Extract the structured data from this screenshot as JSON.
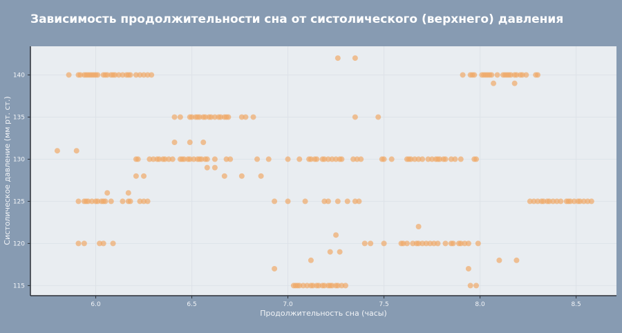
{
  "chart_data": {
    "type": "scatter",
    "title": "Зависимость продолжительности сна от систолического (верхнего) давления",
    "xlabel": "Продолжительность сна (часы)",
    "ylabel": "Систолическое давление (мм рт. ст.)",
    "xlim": [
      5.66,
      8.71
    ],
    "ylim": [
      113.8,
      143.4
    ],
    "xticks": [
      "6.0",
      "6.5",
      "7.0",
      "7.5",
      "8.0",
      "8.5"
    ],
    "yticks": [
      "115",
      "120",
      "125",
      "130",
      "135",
      "140"
    ],
    "grid": true,
    "colors": {
      "point": "#f0a96a",
      "background": "#879bb2",
      "plot_background": "#e9edf1",
      "grid": "#dde2e8"
    },
    "groups": [
      {
        "y": 142,
        "x": [
          7.26,
          7.35
        ]
      },
      {
        "y": 140,
        "x": [
          5.86,
          5.91,
          5.92,
          5.94,
          5.95,
          5.96,
          5.97,
          5.98,
          5.99,
          6.0,
          6.01,
          6.04,
          6.05,
          6.06,
          6.08,
          6.09,
          6.1,
          6.12,
          6.14,
          6.16,
          6.17,
          6.18,
          6.21,
          6.23,
          6.25,
          6.27,
          6.29,
          7.91,
          7.95,
          7.96,
          7.97,
          8.01,
          8.02,
          8.03,
          8.04,
          8.05,
          8.06,
          8.09,
          8.12,
          8.13,
          8.14,
          8.15,
          8.16,
          8.18,
          8.19,
          8.21,
          8.22,
          8.24,
          8.29,
          8.3
        ]
      },
      {
        "y": 139,
        "x": [
          8.07,
          8.18
        ]
      },
      {
        "y": 135,
        "x": [
          6.41,
          6.44,
          6.49,
          6.5,
          6.52,
          6.53,
          6.54,
          6.56,
          6.57,
          6.59,
          6.6,
          6.62,
          6.64,
          6.65,
          6.67,
          6.68,
          6.69,
          6.76,
          6.78,
          6.82,
          7.35,
          7.47
        ]
      },
      {
        "y": 132,
        "x": [
          6.41,
          6.49,
          6.56
        ]
      },
      {
        "y": 131,
        "x": [
          5.8,
          5.9
        ]
      },
      {
        "y": 130,
        "x": [
          6.21,
          6.22,
          6.28,
          6.3,
          6.32,
          6.33,
          6.35,
          6.36,
          6.38,
          6.4,
          6.44,
          6.45,
          6.46,
          6.48,
          6.49,
          6.51,
          6.53,
          6.54,
          6.55,
          6.57,
          6.58,
          6.62,
          6.68,
          6.7,
          6.84,
          6.9,
          7.0,
          7.06,
          7.11,
          7.12,
          7.14,
          7.15,
          7.18,
          7.19,
          7.21,
          7.23,
          7.25,
          7.27,
          7.28,
          7.34,
          7.36,
          7.38,
          7.49,
          7.5,
          7.54,
          7.62,
          7.63,
          7.64,
          7.66,
          7.68,
          7.7,
          7.73,
          7.75,
          7.77,
          7.78,
          7.79,
          7.81,
          7.82,
          7.85,
          7.87,
          7.9,
          7.97,
          7.98
        ]
      },
      {
        "y": 129,
        "x": [
          6.58,
          6.62
        ]
      },
      {
        "y": 128,
        "x": [
          6.21,
          6.25,
          6.67,
          6.76,
          6.86
        ]
      },
      {
        "y": 126,
        "x": [
          6.06,
          6.17
        ]
      },
      {
        "y": 125,
        "x": [
          5.91,
          5.94,
          5.95,
          5.96,
          5.98,
          6.0,
          6.01,
          6.03,
          6.04,
          6.05,
          6.08,
          6.14,
          6.17,
          6.18,
          6.23,
          6.25,
          6.27,
          6.93,
          7.0,
          7.09,
          7.19,
          7.21,
          7.26,
          7.31,
          7.35,
          7.37,
          8.26,
          8.28,
          8.3,
          8.32,
          8.33,
          8.35,
          8.36,
          8.38,
          8.4,
          8.42,
          8.45,
          8.46,
          8.47,
          8.49,
          8.51,
          8.52,
          8.54,
          8.56,
          8.58
        ]
      },
      {
        "y": 122,
        "x": [
          7.68
        ]
      },
      {
        "y": 121,
        "x": [
          7.25
        ]
      },
      {
        "y": 120,
        "x": [
          5.91,
          5.94,
          6.02,
          6.04,
          6.09,
          7.4,
          7.43,
          7.5,
          7.59,
          7.6,
          7.62,
          7.65,
          7.67,
          7.68,
          7.7,
          7.72,
          7.74,
          7.76,
          7.78,
          7.82,
          7.85,
          7.86,
          7.89,
          7.9,
          7.92,
          7.94,
          7.99
        ]
      },
      {
        "y": 119,
        "x": [
          7.22,
          7.27
        ]
      },
      {
        "y": 118,
        "x": [
          7.12,
          8.1,
          8.19
        ]
      },
      {
        "y": 117,
        "x": [
          6.93,
          7.94
        ]
      },
      {
        "y": 115,
        "x": [
          7.03,
          7.04,
          7.05,
          7.06,
          7.08,
          7.1,
          7.12,
          7.13,
          7.15,
          7.16,
          7.18,
          7.19,
          7.21,
          7.22,
          7.23,
          7.25,
          7.26,
          7.28,
          7.3,
          7.95,
          7.98
        ]
      }
    ]
  }
}
